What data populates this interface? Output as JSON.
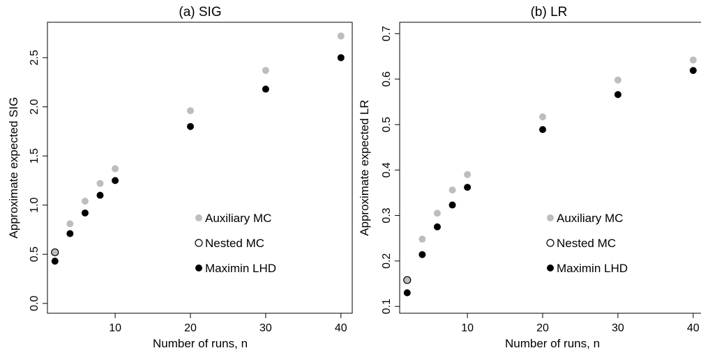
{
  "chart_data": [
    {
      "type": "scatter",
      "title": "(a) SIG",
      "xlabel": "Number of runs, n",
      "ylabel": "Approximate expected SIG",
      "xlim": [
        1,
        41.5
      ],
      "ylim": [
        -0.1,
        2.86
      ],
      "x_ticks": [
        10,
        20,
        30,
        40
      ],
      "y_ticks": [
        0.0,
        0.5,
        1.0,
        1.5,
        2.0,
        2.5
      ],
      "y_tick_labels": [
        "0.0",
        "0.5",
        "1.0",
        "1.5",
        "2.0",
        "2.5"
      ],
      "legend_position": "center-right",
      "series": [
        {
          "name": "Auxiliary MC",
          "marker": "filled-circle",
          "color": "#bdbdbd",
          "x": [
            2,
            4,
            6,
            8,
            10,
            20,
            30,
            40
          ],
          "y": [
            0.52,
            0.81,
            1.04,
            1.22,
            1.37,
            1.96,
            2.37,
            2.72
          ]
        },
        {
          "name": "Nested MC",
          "marker": "open-circle",
          "color": "#000000",
          "x": [
            2
          ],
          "y": [
            0.52
          ]
        },
        {
          "name": "Maximin LHD",
          "marker": "filled-circle",
          "color": "#000000",
          "x": [
            2,
            4,
            6,
            8,
            10,
            20,
            30,
            40
          ],
          "y": [
            0.43,
            0.71,
            0.92,
            1.1,
            1.25,
            1.8,
            2.18,
            2.5
          ]
        }
      ]
    },
    {
      "type": "scatter",
      "title": "(b) LR",
      "xlabel": "Number of runs, n",
      "ylabel": "Approximate expected LR",
      "xlim": [
        1,
        41.5
      ],
      "ylim": [
        0.085,
        0.725
      ],
      "x_ticks": [
        10,
        20,
        30,
        40
      ],
      "y_ticks": [
        0.1,
        0.2,
        0.3,
        0.4,
        0.5,
        0.6,
        0.7
      ],
      "y_tick_labels": [
        "0.1",
        "0.2",
        "0.3",
        "0.4",
        "0.5",
        "0.6",
        "0.7"
      ],
      "legend_position": "center-right",
      "series": [
        {
          "name": "Auxiliary MC",
          "marker": "filled-circle",
          "color": "#bdbdbd",
          "x": [
            2,
            4,
            6,
            8,
            10,
            20,
            30,
            40
          ],
          "y": [
            0.158,
            0.248,
            0.305,
            0.356,
            0.39,
            0.517,
            0.598,
            0.642
          ]
        },
        {
          "name": "Nested MC",
          "marker": "open-circle",
          "color": "#000000",
          "x": [
            2
          ],
          "y": [
            0.158
          ]
        },
        {
          "name": "Maximin LHD",
          "marker": "filled-circle",
          "color": "#000000",
          "x": [
            2,
            4,
            6,
            8,
            10,
            20,
            30,
            40
          ],
          "y": [
            0.13,
            0.214,
            0.275,
            0.323,
            0.362,
            0.489,
            0.566,
            0.619
          ]
        }
      ]
    }
  ]
}
